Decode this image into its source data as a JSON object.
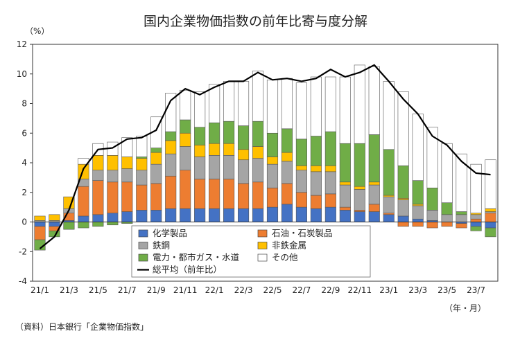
{
  "chart_data": {
    "type": "bar",
    "stacked": true,
    "title": "国内企業物価指数の前年比寄与度分解",
    "ylabel": "（%）",
    "xunit": "（年・月）",
    "source": "（資料）日本銀行「企業物価指数」",
    "ylim": [
      -4,
      12
    ],
    "yticks": [
      "-4",
      "-2",
      "0",
      "2",
      "4",
      "6",
      "8",
      "10",
      "12"
    ],
    "grid": false,
    "legend_position": "bottom-center",
    "categories": [
      "21/1",
      "21/2",
      "21/3",
      "21/4",
      "21/5",
      "21/6",
      "21/7",
      "21/8",
      "21/9",
      "21/10",
      "21/11",
      "21/12",
      "22/1",
      "22/2",
      "22/3",
      "22/4",
      "22/5",
      "22/6",
      "22/7",
      "22/8",
      "22/9",
      "22/10",
      "22/11",
      "22/12",
      "23/1",
      "23/2",
      "23/3",
      "23/4",
      "23/5",
      "23/6",
      "23/7",
      "23/8"
    ],
    "xtick_labels": [
      "21/1",
      "",
      "21/3",
      "",
      "21/5",
      "",
      "21/7",
      "",
      "21/9",
      "",
      "21/11",
      "",
      "22/1",
      "",
      "22/3",
      "",
      "22/5",
      "",
      "22/7",
      "",
      "22/9",
      "",
      "22/11",
      "",
      "23/1",
      "",
      "23/3",
      "",
      "23/5",
      "",
      "23/7",
      ""
    ],
    "series": [
      {
        "name": "化学製品",
        "color": "#4472c4",
        "values": [
          -0.3,
          -0.3,
          0.1,
          0.4,
          0.5,
          0.6,
          0.7,
          0.8,
          0.8,
          0.9,
          0.9,
          0.9,
          0.9,
          0.9,
          0.9,
          0.9,
          1.0,
          1.2,
          1.0,
          0.9,
          1.0,
          0.8,
          0.7,
          0.7,
          0.5,
          0.4,
          0.2,
          0.1,
          0.0,
          -0.1,
          -0.3,
          -0.4
        ]
      },
      {
        "name": "石油・石炭製品",
        "color": "#ed7d31",
        "values": [
          -0.9,
          -0.3,
          0.5,
          2.0,
          2.3,
          2.1,
          2.0,
          1.7,
          1.8,
          2.2,
          2.6,
          2.0,
          2.0,
          2.0,
          1.7,
          1.8,
          1.3,
          1.4,
          1.0,
          0.9,
          0.9,
          0.2,
          0.1,
          0.5,
          0.1,
          -0.3,
          -0.3,
          -0.4,
          -0.3,
          -0.3,
          0.2,
          0.6
        ]
      },
      {
        "name": "鉄鋼",
        "color": "#a5a5a5",
        "values": [
          0.1,
          0.1,
          0.3,
          0.5,
          0.7,
          0.8,
          0.9,
          1.0,
          1.3,
          1.5,
          1.6,
          1.5,
          1.6,
          1.6,
          1.6,
          1.6,
          1.6,
          1.5,
          1.5,
          1.6,
          1.5,
          1.5,
          1.4,
          1.3,
          1.1,
          1.1,
          0.9,
          0.7,
          0.5,
          0.5,
          0.3,
          0.1
        ]
      },
      {
        "name": "非鉄金属",
        "color": "#ffc000",
        "values": [
          0.3,
          0.4,
          0.8,
          1.0,
          1.0,
          1.0,
          0.8,
          0.8,
          0.8,
          0.9,
          0.9,
          0.8,
          0.8,
          0.8,
          0.7,
          0.8,
          0.5,
          0.6,
          0.3,
          0.4,
          0.4,
          0.2,
          0.2,
          0.2,
          0.1,
          0.1,
          0.1,
          0.0,
          0.0,
          0.0,
          0.1,
          0.2
        ]
      },
      {
        "name": "電力・都市ガス・水道",
        "color": "#70ad47",
        "values": [
          -0.7,
          -0.4,
          -0.5,
          -0.4,
          -0.3,
          -0.2,
          -0.1,
          0.1,
          0.3,
          0.6,
          0.9,
          1.2,
          1.4,
          1.5,
          1.6,
          1.7,
          1.6,
          1.6,
          1.8,
          2.0,
          2.3,
          2.6,
          2.9,
          3.2,
          3.1,
          2.2,
          1.6,
          1.5,
          0.8,
          0.2,
          -0.3,
          -0.6
        ]
      },
      {
        "name": "その他",
        "color": "#ffffff",
        "values": [
          0.0,
          0.0,
          0.0,
          0.4,
          0.8,
          0.9,
          1.3,
          1.4,
          2.1,
          2.6,
          2.0,
          2.4,
          2.6,
          2.7,
          3.0,
          3.4,
          3.6,
          3.4,
          3.8,
          4.0,
          3.7,
          4.5,
          5.3,
          4.6,
          4.6,
          5.0,
          4.5,
          4.1,
          4.0,
          3.9,
          3.3,
          3.3
        ]
      }
    ],
    "line": {
      "name": "総平均（前年比）",
      "color": "#000000",
      "values": [
        -1.8,
        -1.0,
        0.8,
        3.6,
        4.9,
        5.0,
        5.6,
        5.7,
        6.2,
        8.2,
        9.0,
        8.6,
        9.1,
        9.5,
        9.5,
        10.1,
        9.6,
        9.7,
        9.5,
        9.7,
        10.3,
        9.8,
        10.1,
        10.6,
        9.5,
        8.3,
        7.3,
        5.8,
        5.2,
        4.1,
        3.3,
        3.2
      ]
    },
    "legend_layout": [
      {
        "name": "化学製品",
        "kind": "box",
        "color": "#4472c4"
      },
      {
        "name": "石油・石炭製品",
        "kind": "box",
        "color": "#ed7d31"
      },
      {
        "name": "鉄鋼",
        "kind": "box",
        "color": "#a5a5a5"
      },
      {
        "name": "非鉄金属",
        "kind": "box",
        "color": "#ffc000"
      },
      {
        "name": "電力・都市ガス・水道",
        "kind": "box",
        "color": "#70ad47"
      },
      {
        "name": "その他",
        "kind": "box",
        "color": "#ffffff"
      },
      {
        "name": "総平均（前年比）",
        "kind": "line",
        "color": "#000000"
      }
    ]
  }
}
